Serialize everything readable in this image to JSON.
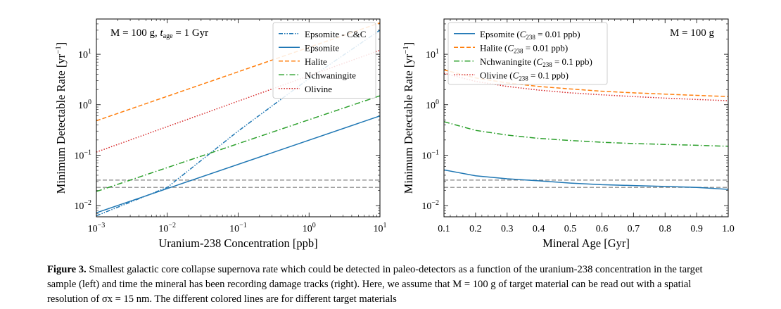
{
  "chart_data": [
    {
      "type": "line",
      "panel": "left",
      "annotation": "M = 100 g, t_age = 1 Gyr",
      "xlabel": "Uranium-238 Concentration [ppb]",
      "ylabel": "Minimum Detectable Rate [yr^-1]",
      "xscale": "log",
      "yscale": "log",
      "xlim": [
        0.001,
        10
      ],
      "ylim": [
        0.006,
        50
      ],
      "xtick_labels": [
        "10^-3",
        "10^-2",
        "10^-1",
        "10^0",
        "10^1"
      ],
      "ytick_labels": [
        "10^-2",
        "10^-1",
        "10^0",
        "10^1"
      ],
      "legend_loc": "top-right",
      "series": [
        {
          "name": "Epsomite - C&C",
          "color": "#1f77b4",
          "dash": "dashdotdot",
          "x": [
            0.001,
            0.01,
            0.1,
            1,
            10
          ],
          "y": [
            0.0063,
            0.023,
            0.3,
            3.3,
            30
          ]
        },
        {
          "name": "Epsomite",
          "color": "#1f77b4",
          "dash": "solid",
          "x": [
            0.001,
            10
          ],
          "y": [
            0.0072,
            0.6
          ]
        },
        {
          "name": "Halite",
          "color": "#ff7f0e",
          "dash": "dashed",
          "x": [
            0.001,
            10
          ],
          "y": [
            0.48,
            42
          ]
        },
        {
          "name": "Nchwaningite",
          "color": "#2ca02c",
          "dash": "dashdot",
          "x": [
            0.001,
            10
          ],
          "y": [
            0.019,
            1.5
          ]
        },
        {
          "name": "Olivine",
          "color": "#d62728",
          "dash": "dotted",
          "x": [
            0.001,
            10
          ],
          "y": [
            0.115,
            12
          ]
        }
      ],
      "hlines": [
        {
          "y": 0.032,
          "color": "#808080",
          "dash": "dashed"
        },
        {
          "y": 0.023,
          "color": "#808080",
          "dash": "dashed"
        }
      ]
    },
    {
      "type": "line",
      "panel": "right",
      "annotation": "M = 100 g",
      "xlabel": "Mineral Age [Gyr]",
      "ylabel": "Minimum Detectable Rate [yr^-1]",
      "xscale": "linear",
      "yscale": "log",
      "xlim": [
        0.1,
        1.0
      ],
      "ylim": [
        0.006,
        50
      ],
      "xtick_labels": [
        "0.1",
        "0.2",
        "0.3",
        "0.4",
        "0.5",
        "0.6",
        "0.7",
        "0.8",
        "0.9",
        "1.0"
      ],
      "ytick_labels": [
        "10^-2",
        "10^-1",
        "10^0",
        "10^1"
      ],
      "legend_loc": "top-left",
      "series": [
        {
          "name": "Epsomite (C_238 = 0.01 ppb)",
          "color": "#1f77b4",
          "dash": "solid",
          "x": [
            0.1,
            0.2,
            0.3,
            0.4,
            0.5,
            0.6,
            0.7,
            0.8,
            0.9,
            1.0
          ],
          "y": [
            0.051,
            0.039,
            0.034,
            0.031,
            0.028,
            0.026,
            0.025,
            0.024,
            0.023,
            0.021
          ]
        },
        {
          "name": "Halite (C_238 = 0.01 ppb)",
          "color": "#ff7f0e",
          "dash": "dashed",
          "x": [
            0.1,
            0.2,
            0.3,
            0.4,
            0.5,
            0.6,
            0.7,
            0.8,
            0.9,
            1.0
          ],
          "y": [
            4.9,
            3.4,
            2.7,
            2.3,
            2.05,
            1.85,
            1.72,
            1.62,
            1.53,
            1.45
          ]
        },
        {
          "name": "Nchwaningite (C_238 = 0.1 ppb)",
          "color": "#2ca02c",
          "dash": "dashdot",
          "x": [
            0.1,
            0.2,
            0.3,
            0.4,
            0.5,
            0.6,
            0.7,
            0.8,
            0.9,
            1.0
          ],
          "y": [
            0.46,
            0.31,
            0.25,
            0.215,
            0.195,
            0.18,
            0.17,
            0.163,
            0.157,
            0.15
          ]
        },
        {
          "name": "Olivine (C_238 = 0.1 ppb)",
          "color": "#d62728",
          "dash": "dotted",
          "x": [
            0.1,
            0.2,
            0.3,
            0.4,
            0.5,
            0.6,
            0.7,
            0.8,
            0.9,
            1.0
          ],
          "y": [
            4.2,
            2.9,
            2.3,
            1.95,
            1.72,
            1.57,
            1.45,
            1.35,
            1.27,
            1.2
          ]
        }
      ],
      "hlines": [
        {
          "y": 0.032,
          "color": "#808080",
          "dash": "dashed"
        },
        {
          "y": 0.023,
          "color": "#808080",
          "dash": "dashed"
        }
      ]
    }
  ],
  "caption": {
    "label": "Figure 3.",
    "text": "Smallest galactic core collapse supernova rate which could be detected in paleo-detectors as a function of the uranium-238 concentration in the target sample (left) and time the mineral has been recording damage tracks (right). Here, we assume that M = 100 g of target material can be read out with a spatial resolution of σx = 15 nm. The different colored lines are for different target materials"
  }
}
